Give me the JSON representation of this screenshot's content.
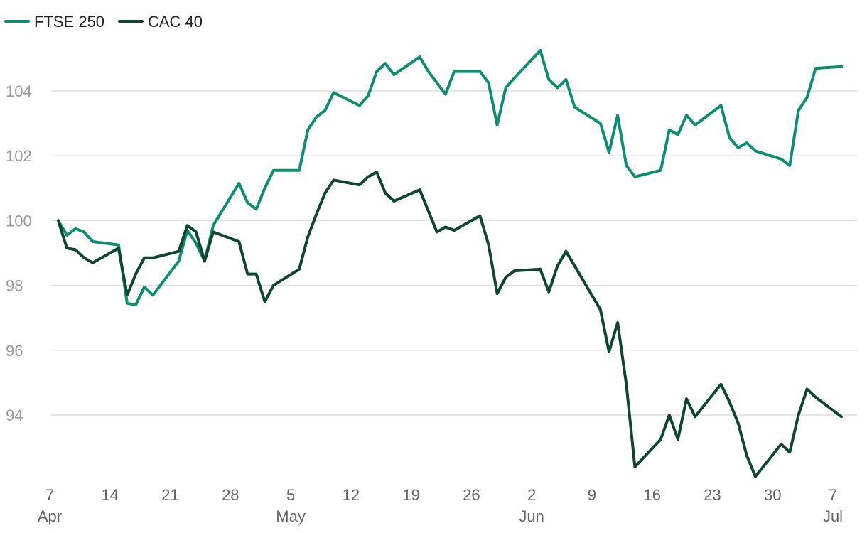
{
  "chart_data": {
    "type": "line",
    "title": "",
    "xlabel": "",
    "ylabel": "",
    "x_axis": {
      "type": "date",
      "range": [
        "2025-04-07",
        "2025-07-08"
      ]
    },
    "ylim": [
      92,
      106
    ],
    "y_ticks": [
      94,
      96,
      98,
      100,
      102,
      104
    ],
    "y_tick_labels": [
      "94",
      "96",
      "98",
      "100",
      "102",
      "104"
    ],
    "x_ticks": [
      {
        "date": "2025-04-07",
        "day": "7",
        "month": "Apr"
      },
      {
        "date": "2025-04-14",
        "day": "14",
        "month": ""
      },
      {
        "date": "2025-04-21",
        "day": "21",
        "month": ""
      },
      {
        "date": "2025-04-28",
        "day": "28",
        "month": ""
      },
      {
        "date": "2025-05-05",
        "day": "5",
        "month": "May"
      },
      {
        "date": "2025-05-12",
        "day": "12",
        "month": ""
      },
      {
        "date": "2025-05-19",
        "day": "19",
        "month": ""
      },
      {
        "date": "2025-05-26",
        "day": "26",
        "month": ""
      },
      {
        "date": "2025-06-02",
        "day": "2",
        "month": "Jun"
      },
      {
        "date": "2025-06-09",
        "day": "9",
        "month": ""
      },
      {
        "date": "2025-06-16",
        "day": "16",
        "month": ""
      },
      {
        "date": "2025-06-23",
        "day": "23",
        "month": ""
      },
      {
        "date": "2025-06-30",
        "day": "30",
        "month": ""
      },
      {
        "date": "2025-07-07",
        "day": "7",
        "month": "Jul"
      }
    ],
    "grid": true,
    "legend_position": "top-left",
    "series": [
      {
        "name": "FTSE 250",
        "color": "#0a8f72",
        "points": [
          [
            "2025-04-07",
            100.0
          ],
          [
            "2025-04-08",
            99.55
          ],
          [
            "2025-04-09",
            99.75
          ],
          [
            "2025-04-10",
            99.65
          ],
          [
            "2025-04-11",
            99.35
          ],
          [
            "2025-04-14",
            99.25
          ],
          [
            "2025-04-15",
            97.45
          ],
          [
            "2025-04-16",
            97.4
          ],
          [
            "2025-04-17",
            97.95
          ],
          [
            "2025-04-18",
            97.7
          ],
          [
            "2025-04-21",
            98.75
          ],
          [
            "2025-04-22",
            99.7
          ],
          [
            "2025-04-23",
            99.3
          ],
          [
            "2025-04-24",
            98.75
          ],
          [
            "2025-04-25",
            99.85
          ],
          [
            "2025-04-28",
            101.15
          ],
          [
            "2025-04-29",
            100.55
          ],
          [
            "2025-04-30",
            100.35
          ],
          [
            "2025-05-01",
            101.0
          ],
          [
            "2025-05-02",
            101.55
          ],
          [
            "2025-05-05",
            101.55
          ],
          [
            "2025-05-06",
            102.8
          ],
          [
            "2025-05-07",
            103.2
          ],
          [
            "2025-05-08",
            103.4
          ],
          [
            "2025-05-09",
            103.95
          ],
          [
            "2025-05-12",
            103.55
          ],
          [
            "2025-05-13",
            103.85
          ],
          [
            "2025-05-14",
            104.6
          ],
          [
            "2025-05-15",
            104.85
          ],
          [
            "2025-05-16",
            104.5
          ],
          [
            "2025-05-19",
            105.05
          ],
          [
            "2025-05-20",
            104.6
          ],
          [
            "2025-05-21",
            104.25
          ],
          [
            "2025-05-22",
            103.9
          ],
          [
            "2025-05-23",
            104.6
          ],
          [
            "2025-05-26",
            104.6
          ],
          [
            "2025-05-27",
            104.25
          ],
          [
            "2025-05-28",
            102.95
          ],
          [
            "2025-05-29",
            104.1
          ],
          [
            "2025-05-30",
            104.4
          ],
          [
            "2025-06-02",
            105.25
          ],
          [
            "2025-06-03",
            104.35
          ],
          [
            "2025-06-04",
            104.1
          ],
          [
            "2025-06-05",
            104.35
          ],
          [
            "2025-06-06",
            103.5
          ],
          [
            "2025-06-09",
            103.0
          ],
          [
            "2025-06-10",
            102.1
          ],
          [
            "2025-06-11",
            103.25
          ],
          [
            "2025-06-12",
            101.7
          ],
          [
            "2025-06-13",
            101.35
          ],
          [
            "2025-06-16",
            101.55
          ],
          [
            "2025-06-17",
            102.8
          ],
          [
            "2025-06-18",
            102.65
          ],
          [
            "2025-06-19",
            103.25
          ],
          [
            "2025-06-20",
            102.95
          ],
          [
            "2025-06-23",
            103.55
          ],
          [
            "2025-06-24",
            102.55
          ],
          [
            "2025-06-25",
            102.25
          ],
          [
            "2025-06-26",
            102.4
          ],
          [
            "2025-06-27",
            102.15
          ],
          [
            "2025-06-30",
            101.9
          ],
          [
            "2025-07-01",
            101.7
          ],
          [
            "2025-07-02",
            103.4
          ],
          [
            "2025-07-03",
            103.8
          ],
          [
            "2025-07-04",
            104.7
          ],
          [
            "2025-07-07",
            104.75
          ]
        ]
      },
      {
        "name": "CAC 40",
        "color": "#0e4630",
        "points": [
          [
            "2025-04-07",
            100.0
          ],
          [
            "2025-04-08",
            99.15
          ],
          [
            "2025-04-09",
            99.1
          ],
          [
            "2025-04-10",
            98.85
          ],
          [
            "2025-04-11",
            98.7
          ],
          [
            "2025-04-14",
            99.15
          ],
          [
            "2025-04-15",
            97.7
          ],
          [
            "2025-04-16",
            98.35
          ],
          [
            "2025-04-17",
            98.85
          ],
          [
            "2025-04-18",
            98.85
          ],
          [
            "2025-04-21",
            99.05
          ],
          [
            "2025-04-22",
            99.85
          ],
          [
            "2025-04-23",
            99.65
          ],
          [
            "2025-04-24",
            98.75
          ],
          [
            "2025-04-25",
            99.65
          ],
          [
            "2025-04-28",
            99.35
          ],
          [
            "2025-04-29",
            98.35
          ],
          [
            "2025-04-30",
            98.35
          ],
          [
            "2025-05-01",
            97.5
          ],
          [
            "2025-05-02",
            98.0
          ],
          [
            "2025-05-05",
            98.5
          ],
          [
            "2025-05-06",
            99.5
          ],
          [
            "2025-05-07",
            100.2
          ],
          [
            "2025-05-08",
            100.85
          ],
          [
            "2025-05-09",
            101.25
          ],
          [
            "2025-05-12",
            101.1
          ],
          [
            "2025-05-13",
            101.35
          ],
          [
            "2025-05-14",
            101.5
          ],
          [
            "2025-05-15",
            100.85
          ],
          [
            "2025-05-16",
            100.6
          ],
          [
            "2025-05-19",
            100.95
          ],
          [
            "2025-05-20",
            100.3
          ],
          [
            "2025-05-21",
            99.65
          ],
          [
            "2025-05-22",
            99.8
          ],
          [
            "2025-05-23",
            99.7
          ],
          [
            "2025-05-26",
            100.15
          ],
          [
            "2025-05-27",
            99.25
          ],
          [
            "2025-05-28",
            97.75
          ],
          [
            "2025-05-29",
            98.25
          ],
          [
            "2025-05-30",
            98.45
          ],
          [
            "2025-06-02",
            98.5
          ],
          [
            "2025-06-03",
            97.8
          ],
          [
            "2025-06-04",
            98.6
          ],
          [
            "2025-06-05",
            99.05
          ],
          [
            "2025-06-06",
            98.6
          ],
          [
            "2025-06-09",
            97.25
          ],
          [
            "2025-06-10",
            95.95
          ],
          [
            "2025-06-11",
            96.85
          ],
          [
            "2025-06-12",
            94.95
          ],
          [
            "2025-06-13",
            92.4
          ],
          [
            "2025-06-16",
            93.25
          ],
          [
            "2025-06-17",
            94.0
          ],
          [
            "2025-06-18",
            93.25
          ],
          [
            "2025-06-19",
            94.5
          ],
          [
            "2025-06-20",
            93.95
          ],
          [
            "2025-06-23",
            94.95
          ],
          [
            "2025-06-24",
            94.4
          ],
          [
            "2025-06-25",
            93.75
          ],
          [
            "2025-06-26",
            92.75
          ],
          [
            "2025-06-27",
            92.1
          ],
          [
            "2025-06-30",
            93.1
          ],
          [
            "2025-07-01",
            92.85
          ],
          [
            "2025-07-02",
            94.0
          ],
          [
            "2025-07-03",
            94.8
          ],
          [
            "2025-07-04",
            94.55
          ],
          [
            "2025-07-07",
            93.95
          ]
        ]
      }
    ]
  }
}
